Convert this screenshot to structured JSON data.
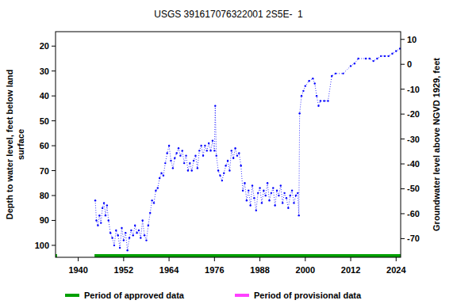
{
  "chart_data": {
    "type": "line",
    "title": "USGS 391617076322001 2S5E-  1",
    "y_label": [
      "Depth to water level, feet below land",
      "surface"
    ],
    "y2_label": "Groundwater level above NGVD 1929, feet",
    "xlim": [
      1934,
      2025.2
    ],
    "xticks": [
      1940,
      1952,
      1964,
      1976,
      1988,
      2000,
      2012,
      2024
    ],
    "ylim": [
      104.8,
      14.2
    ],
    "yticks": [
      20,
      30,
      40,
      50,
      60,
      70,
      80,
      90,
      100
    ],
    "y2lim": [
      -77.5,
      13.1
    ],
    "y2ticks": [
      10,
      0,
      -10,
      -20,
      -30,
      -40,
      -50,
      -60,
      -70
    ],
    "grid": false,
    "legend": "bottom",
    "series": [
      {
        "name": "Depth to water level",
        "color": "#0000ff",
        "marker": "dot",
        "line_style": "dotted",
        "x": [
          1944.5,
          1944.8,
          1945.2,
          1945.6,
          1946,
          1946.4,
          1946.8,
          1947.2,
          1947.6,
          1948,
          1948.5,
          1949,
          1949.5,
          1950,
          1950.5,
          1951,
          1951.5,
          1952,
          1952.5,
          1953,
          1953.5,
          1954,
          1954.5,
          1955,
          1955.5,
          1956,
          1956.5,
          1957,
          1957.5,
          1958,
          1958.5,
          1959,
          1959.5,
          1960,
          1960.5,
          1961,
          1961.5,
          1962,
          1962.5,
          1963,
          1963.5,
          1964,
          1964.5,
          1965,
          1965.5,
          1966,
          1966.5,
          1967,
          1967.5,
          1968,
          1968.5,
          1969,
          1969.5,
          1970,
          1970.5,
          1971,
          1971.5,
          1972,
          1972.5,
          1973,
          1973.5,
          1974,
          1974.5,
          1975,
          1975.5,
          1976,
          1976.2,
          1976.5,
          1977,
          1977.5,
          1978,
          1978.5,
          1979,
          1979.5,
          1980,
          1980.5,
          1981,
          1981.5,
          1982,
          1982.5,
          1983,
          1983.5,
          1984,
          1984.5,
          1985,
          1985.5,
          1986,
          1986.5,
          1987,
          1987.5,
          1988,
          1988.5,
          1989,
          1989.5,
          1990,
          1990.5,
          1991,
          1991.5,
          1992,
          1992.5,
          1993,
          1993.5,
          1994,
          1994.5,
          1995,
          1995.5,
          1996,
          1996.5,
          1997,
          1997.5,
          1998,
          1998.3,
          1998.5,
          1999,
          1999.5,
          2000,
          2001,
          2002,
          2002.5,
          2003,
          2003.5,
          2004,
          2005,
          2006,
          2007,
          2008,
          2010,
          2012,
          2013,
          2014,
          2016,
          2017,
          2018,
          2019,
          2020,
          2021,
          2022,
          2023,
          2024,
          2025
        ],
        "values": [
          82,
          90,
          92,
          88,
          91,
          85,
          83,
          88,
          84,
          90,
          95,
          97,
          100,
          94,
          96,
          101,
          93,
          98,
          95,
          102,
          97,
          94,
          96,
          92,
          95,
          94,
          97,
          90,
          96,
          98,
          92,
          87,
          82,
          83,
          78,
          77,
          73,
          71,
          72,
          67,
          63,
          60,
          66,
          69,
          65,
          63,
          61,
          64,
          62,
          67,
          64,
          70,
          67,
          70,
          66,
          64,
          69,
          62,
          60,
          64,
          60,
          62,
          59,
          62,
          58,
          62,
          44,
          64,
          70,
          72,
          74,
          71,
          68,
          66,
          70,
          62,
          65,
          61,
          64,
          63,
          68,
          78,
          75,
          82,
          78,
          84,
          76,
          81,
          86,
          79,
          77,
          83,
          78,
          80,
          75,
          82,
          79,
          77,
          84,
          78,
          80,
          76,
          83,
          79,
          81,
          85,
          80,
          78,
          83,
          80,
          79,
          88,
          47,
          40,
          38,
          36,
          34,
          33,
          35,
          40,
          44,
          42,
          42,
          42,
          32,
          31,
          31,
          28,
          27,
          25,
          25,
          25,
          26,
          25,
          24,
          24,
          24,
          23,
          22,
          21
        ]
      }
    ],
    "periods": [
      {
        "name": "Period of approved data",
        "color": "#00a000",
        "ranges": [
          [
            1934,
            1934.4
          ],
          [
            1944.3,
            2025.2
          ]
        ]
      },
      {
        "name": "Period of provisional data",
        "color": "#ff40ff",
        "ranges": []
      }
    ]
  }
}
